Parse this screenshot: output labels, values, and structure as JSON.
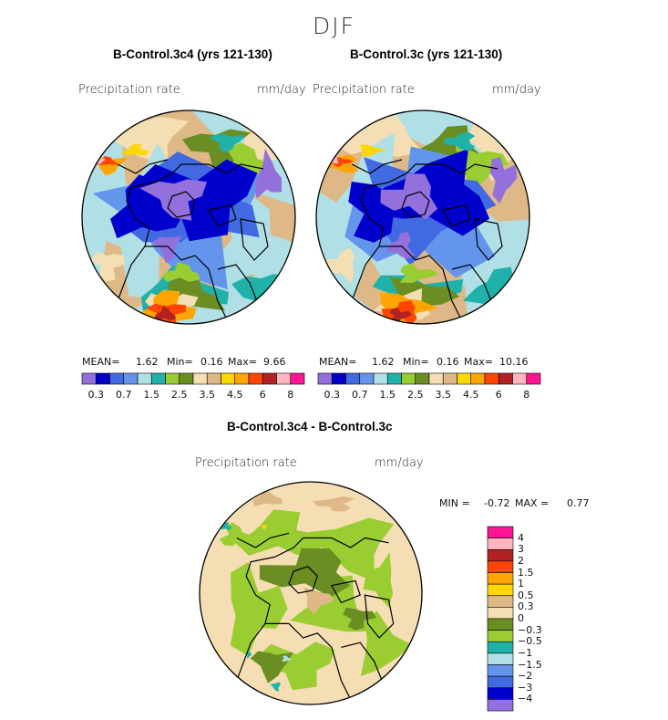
{
  "page": {
    "season": "DJF"
  },
  "palette": {
    "full": [
      "#9370db",
      "#0000cd",
      "#4169e1",
      "#6495ed",
      "#b0e0e6",
      "#20b2aa",
      "#9acd32",
      "#6b8e23",
      "#f5deb3",
      "#deb887",
      "#ffd700",
      "#ffa500",
      "#ff4500",
      "#b22222",
      "#ffb6c1",
      "#ff1493"
    ],
    "diff": [
      "#9370db",
      "#0000cd",
      "#4169e1",
      "#6495ed",
      "#b0e0e6",
      "#20b2aa",
      "#9acd32",
      "#6b8e23",
      "#f5deb3",
      "#deb887",
      "#ffd700",
      "#ffa500",
      "#ff4500",
      "#b22222",
      "#ffb6c1",
      "#ff1493"
    ],
    "coast": "#000000",
    "outline": "#000000"
  },
  "chart_data": [
    {
      "type": "heatmap",
      "projection": "north-polar-stereographic",
      "title": "B-Control.3c4 (yrs 121-130)",
      "field_label": "Precipitation rate",
      "units": "mm/day",
      "stats": {
        "mean_label": "MEAN=",
        "mean": "1.62",
        "min_label": "Min=",
        "min": "0.16",
        "max_label": "Max=",
        "max": "9.66"
      },
      "levels": [
        0.2,
        0.3,
        0.5,
        0.7,
        1,
        1.5,
        2,
        2.5,
        3,
        3.5,
        4,
        4.5,
        5,
        6,
        7,
        8
      ],
      "colorbar_tick_labels": [
        "0.3",
        "0.7",
        "1.5",
        "2.5",
        "3.5",
        "4.5",
        "6",
        "8"
      ]
    },
    {
      "type": "heatmap",
      "projection": "north-polar-stereographic",
      "title": "B-Control.3c (yrs 121-130)",
      "field_label": "Precipitation rate",
      "units": "mm/day",
      "stats": {
        "mean_label": "MEAN=",
        "mean": "1.62",
        "min_label": "Min=",
        "min": "0.16",
        "max_label": "Max=",
        "max": "10.16"
      },
      "levels": [
        0.2,
        0.3,
        0.5,
        0.7,
        1,
        1.5,
        2,
        2.5,
        3,
        3.5,
        4,
        4.5,
        5,
        6,
        7,
        8
      ],
      "colorbar_tick_labels": [
        "0.3",
        "0.7",
        "1.5",
        "2.5",
        "3.5",
        "4.5",
        "6",
        "8"
      ]
    },
    {
      "type": "heatmap",
      "projection": "north-polar-stereographic",
      "title": "B-Control.3c4 - B-Control.3c",
      "field_label": "Precipitation rate",
      "units": "mm/day",
      "stats": {
        "min_label": "MIN =",
        "min": "-0.72",
        "max_label": "MAX =",
        "max": "0.77"
      },
      "levels": [
        -4,
        -3,
        -2,
        -1.5,
        -1,
        -0.5,
        -0.3,
        0,
        0.3,
        0.5,
        1,
        1.5,
        2,
        3,
        4
      ],
      "colorbar_tick_labels": [
        "4",
        "3",
        "2",
        "1.5",
        "1",
        "0.5",
        "0.3",
        "0",
        "−0.3",
        "−0.5",
        "−1",
        "−1.5",
        "−2",
        "−3",
        "−4"
      ]
    }
  ]
}
